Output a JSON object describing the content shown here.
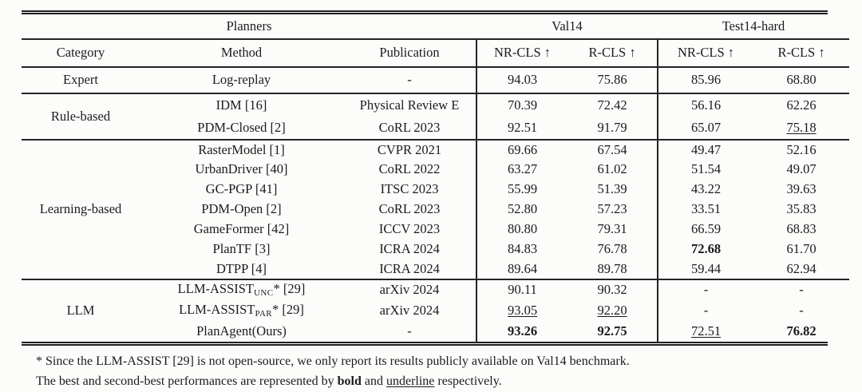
{
  "table_header": {
    "planners": "Planners",
    "val14": "Val14",
    "test14_hard": "Test14-hard",
    "category": "Category",
    "method": "Method",
    "publication": "Publication",
    "nr_cls": "NR-CLS ↑",
    "r_cls": "R-CLS ↑"
  },
  "sections": [
    {
      "category": "Expert",
      "rows": [
        {
          "method": "Log-replay",
          "publication": "-",
          "val14_nr": "94.03",
          "val14_r": "75.86",
          "test14_nr": "85.96",
          "test14_r": "68.80"
        }
      ]
    },
    {
      "category": "Rule-based",
      "rows": [
        {
          "method": "IDM [16]",
          "publication": "Physical Review E",
          "val14_nr": "70.39",
          "val14_r": "72.42",
          "test14_nr": "56.16",
          "test14_r": "62.26"
        },
        {
          "method": "PDM-Closed [2]",
          "publication": "CoRL 2023",
          "val14_nr": "92.51",
          "val14_r": "91.79",
          "test14_nr": "65.07",
          "test14_r": "75.18"
        }
      ]
    },
    {
      "category": "Learning-based",
      "rows": [
        {
          "method": "RasterModel [1]",
          "publication": "CVPR 2021",
          "val14_nr": "69.66",
          "val14_r": "67.54",
          "test14_nr": "49.47",
          "test14_r": "52.16"
        },
        {
          "method": "UrbanDriver [40]",
          "publication": "CoRL 2022",
          "val14_nr": "63.27",
          "val14_r": "61.02",
          "test14_nr": "51.54",
          "test14_r": "49.07"
        },
        {
          "method": "GC-PGP [41]",
          "publication": "ITSC 2023",
          "val14_nr": "55.99",
          "val14_r": "51.39",
          "test14_nr": "43.22",
          "test14_r": "39.63"
        },
        {
          "method": "PDM-Open [2]",
          "publication": "CoRL 2023",
          "val14_nr": "52.80",
          "val14_r": "57.23",
          "test14_nr": "33.51",
          "test14_r": "35.83"
        },
        {
          "method": "GameFormer [42]",
          "publication": "ICCV 2023",
          "val14_nr": "80.80",
          "val14_r": "79.31",
          "test14_nr": "66.59",
          "test14_r": "68.83"
        },
        {
          "method": "PlanTF [3]",
          "publication": "ICRA 2024",
          "val14_nr": "84.83",
          "val14_r": "76.78",
          "test14_nr": "72.68",
          "test14_r": "61.70"
        },
        {
          "method": "DTPP [4]",
          "publication": "ICRA 2024",
          "val14_nr": "89.64",
          "val14_r": "89.78",
          "test14_nr": "59.44",
          "test14_r": "62.94"
        }
      ]
    },
    {
      "category": "LLM",
      "rows": [
        {
          "method_prefix": "LLM-ASSIST",
          "method_sub": "UNC",
          "method_suffix": "* [29]",
          "publication": "arXiv 2024",
          "val14_nr": "90.11",
          "val14_r": "90.32",
          "test14_nr": "-",
          "test14_r": "-"
        },
        {
          "method_prefix": "LLM-ASSIST",
          "method_sub": "PAR",
          "method_suffix": "* [29]",
          "publication": "arXiv 2024",
          "val14_nr": "93.05",
          "val14_r": "92.20",
          "test14_nr": "-",
          "test14_r": "-"
        },
        {
          "method": "PlanAgent(Ours)",
          "publication": "-",
          "val14_nr": "93.26",
          "val14_r": "92.75",
          "test14_nr": "72.51",
          "test14_r": "76.82"
        }
      ]
    }
  ],
  "footnotes": {
    "line1": "* Since the LLM-ASSIST [29] is not open-source, we only report its results publicly available on Val14 benchmark.",
    "line2_prefix": "The best and second-best performances are represented by ",
    "line2_bold": "bold",
    "line2_middle": " and ",
    "line2_underline": "underline",
    "line2_suffix": " respectively."
  }
}
